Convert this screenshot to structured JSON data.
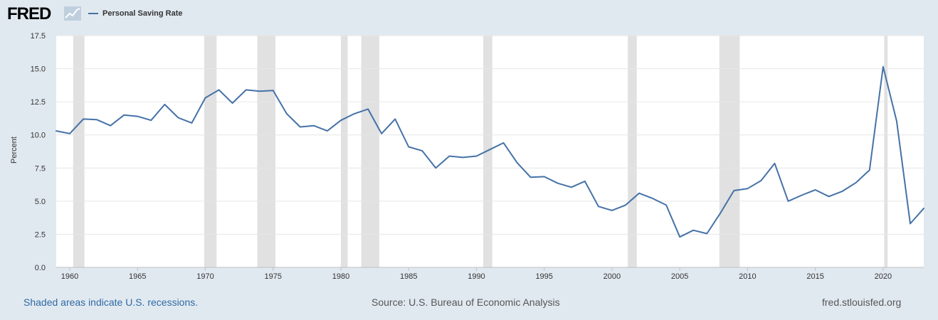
{
  "header": {
    "logo_text": "FRED",
    "logo_icon": "chart-line-icon",
    "legend_label": "Personal Saving Rate"
  },
  "footer": {
    "recessions_note": "Shaded areas indicate U.S. recessions.",
    "source": "Source: U.S. Bureau of Economic Analysis",
    "url": "fred.stlouisfed.org"
  },
  "colors": {
    "series": "#4572a7",
    "recession": "#e1e1e1",
    "background": "#e1e9f0",
    "plot_background": "#ffffff",
    "footer_link": "#2f6aa5"
  },
  "chart_data": {
    "type": "line",
    "title": "",
    "xlabel": "",
    "ylabel": "Percent",
    "xlim": [
      1959,
      2023
    ],
    "ylim": [
      0,
      17.5
    ],
    "x_ticks": [
      "1960",
      "1965",
      "1970",
      "1975",
      "1980",
      "1985",
      "1990",
      "1995",
      "2000",
      "2005",
      "2010",
      "2015",
      "2020"
    ],
    "y_ticks": [
      "0.0",
      "2.5",
      "5.0",
      "7.5",
      "10.0",
      "12.5",
      "15.0",
      "17.5"
    ],
    "grid": "horizontal",
    "legend": "top-left",
    "recessions": [
      [
        1960.25,
        1961.08
      ],
      [
        1969.92,
        1970.83
      ],
      [
        1973.83,
        1975.17
      ],
      [
        1980.0,
        1980.5
      ],
      [
        1981.5,
        1982.83
      ],
      [
        1990.5,
        1991.17
      ],
      [
        2001.17,
        2001.83
      ],
      [
        2007.92,
        2009.42
      ],
      [
        2020.08,
        2020.33
      ]
    ],
    "series": [
      {
        "name": "Personal Saving Rate",
        "x": [
          1959,
          1960,
          1961,
          1962,
          1963,
          1964,
          1965,
          1966,
          1967,
          1968,
          1969,
          1970,
          1971,
          1972,
          1973,
          1974,
          1975,
          1976,
          1977,
          1978,
          1979,
          1980,
          1981,
          1982,
          1983,
          1984,
          1985,
          1986,
          1987,
          1988,
          1989,
          1990,
          1991,
          1992,
          1993,
          1994,
          1995,
          1996,
          1997,
          1998,
          1999,
          2000,
          2001,
          2002,
          2003,
          2004,
          2005,
          2006,
          2007,
          2008,
          2009,
          2010,
          2011,
          2012,
          2013,
          2014,
          2015,
          2016,
          2017,
          2018,
          2019,
          2020,
          2021,
          2022,
          2023
        ],
        "values": [
          10.3,
          10.1,
          11.2,
          11.15,
          10.7,
          11.5,
          11.4,
          11.1,
          12.3,
          11.3,
          10.9,
          12.8,
          13.4,
          12.4,
          13.4,
          13.3,
          13.35,
          11.6,
          10.6,
          10.7,
          10.3,
          11.1,
          11.6,
          11.95,
          10.1,
          11.2,
          9.1,
          8.8,
          7.5,
          8.4,
          8.3,
          8.4,
          8.9,
          9.4,
          7.9,
          6.8,
          6.85,
          6.35,
          6.05,
          6.5,
          4.6,
          4.3,
          4.7,
          5.6,
          5.2,
          4.7,
          2.3,
          2.8,
          2.55,
          4.1,
          5.8,
          5.95,
          6.55,
          7.85,
          5.0,
          5.45,
          5.85,
          5.35,
          5.75,
          6.4,
          7.35,
          15.15,
          11.05,
          3.3,
          4.45
        ]
      }
    ]
  }
}
